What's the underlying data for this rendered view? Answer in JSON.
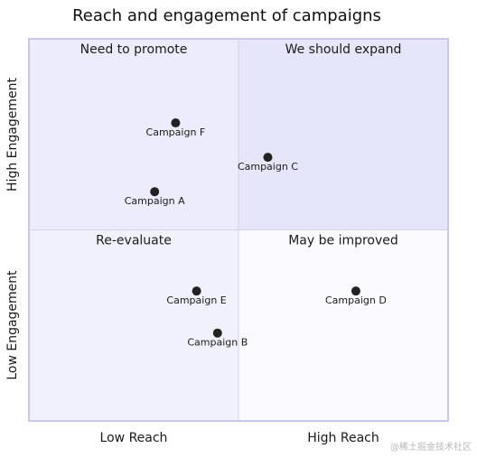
{
  "chart_data": {
    "type": "scatter",
    "chart_kind": "quadrant",
    "title": "Reach and engagement of campaigns",
    "x_axis": {
      "low_label": "Low Reach",
      "high_label": "High Reach",
      "range": [
        0,
        1
      ]
    },
    "y_axis": {
      "low_label": "Low Engagement",
      "high_label": "High Engagement",
      "range": [
        0,
        1
      ]
    },
    "quadrants": [
      {
        "id": "top-left",
        "label": "Need to promote",
        "fill": "#ececfc"
      },
      {
        "id": "top-right",
        "label": "We should expand",
        "fill": "#e6e6fa"
      },
      {
        "id": "bottom-left",
        "label": "Re-evaluate",
        "fill": "#f1f1fd"
      },
      {
        "id": "bottom-right",
        "label": "May be improved",
        "fill": "#fbfbff"
      }
    ],
    "points": [
      {
        "label": "Campaign F",
        "x": 0.35,
        "y": 0.78
      },
      {
        "label": "Campaign C",
        "x": 0.57,
        "y": 0.69
      },
      {
        "label": "Campaign A",
        "x": 0.3,
        "y": 0.6
      },
      {
        "label": "Campaign E",
        "x": 0.4,
        "y": 0.34
      },
      {
        "label": "Campaign D",
        "x": 0.78,
        "y": 0.34
      },
      {
        "label": "Campaign B",
        "x": 0.45,
        "y": 0.23
      }
    ],
    "colors": {
      "border": "#c8c8ea",
      "divider": "#d2d2ee",
      "point": "#222222"
    }
  },
  "watermark": "@稀土掘金技术社区"
}
